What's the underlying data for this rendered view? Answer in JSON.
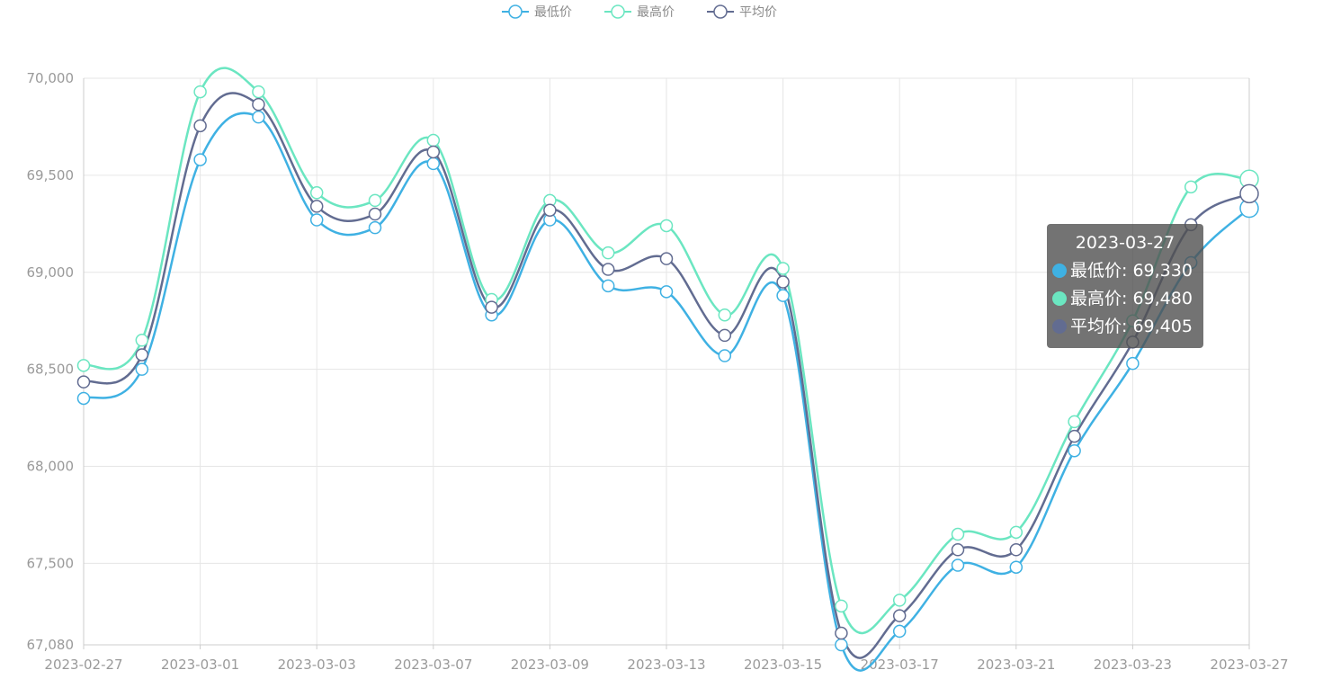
{
  "chart_data": {
    "type": "line",
    "smooth": true,
    "x": [
      "2023-02-27",
      "2023-02-28",
      "2023-03-01",
      "2023-03-02",
      "2023-03-03",
      "2023-03-06",
      "2023-03-07",
      "2023-03-08",
      "2023-03-09",
      "2023-03-10",
      "2023-03-13",
      "2023-03-14",
      "2023-03-15",
      "2023-03-16",
      "2023-03-17",
      "2023-03-20",
      "2023-03-21",
      "2023-03-22",
      "2023-03-23",
      "2023-03-24",
      "2023-03-27"
    ],
    "x_tick_labels": [
      "2023-02-27",
      "2023-03-01",
      "2023-03-03",
      "2023-03-07",
      "2023-03-09",
      "2023-03-13",
      "2023-03-15",
      "2023-03-17",
      "2023-03-21",
      "2023-03-23",
      "2023-03-27"
    ],
    "ylim": [
      67080,
      70000
    ],
    "y_ticks": [
      67080,
      67500,
      68000,
      68500,
      69000,
      69500,
      70000
    ],
    "y_tick_labels": [
      "67,080",
      "67,500",
      "68,000",
      "68,500",
      "69,000",
      "69,500",
      "70,000"
    ],
    "grid": true,
    "legend_position": "top-center",
    "series": [
      {
        "name": "最低价",
        "color": "#3fb1e3",
        "values": [
          68350,
          68500,
          69580,
          69800,
          69270,
          69230,
          69560,
          68780,
          69270,
          68930,
          68900,
          68570,
          68880,
          67080,
          67150,
          67490,
          67480,
          68080,
          68530,
          69050,
          69330
        ]
      },
      {
        "name": "最高价",
        "color": "#6be6c1",
        "values": [
          68520,
          68650,
          69930,
          69930,
          69410,
          69370,
          69680,
          68860,
          69370,
          69100,
          69240,
          68780,
          69020,
          67280,
          67310,
          67650,
          67660,
          68230,
          68750,
          69440,
          69480
        ]
      },
      {
        "name": "平均价",
        "color": "#626c91",
        "values": [
          68435,
          68575,
          69755,
          69865,
          69340,
          69300,
          69620,
          68820,
          69320,
          69015,
          69070,
          68675,
          68950,
          67140,
          67230,
          67570,
          67570,
          68155,
          68640,
          69245,
          69405
        ]
      }
    ],
    "tooltip": {
      "title": "2023-03-27",
      "rows": [
        {
          "label": "最低价: 69,330",
          "color": "#3fb1e3"
        },
        {
          "label": "最高价: 69,480",
          "color": "#6be6c1"
        },
        {
          "label": "平均价: 69,405",
          "color": "#626c91"
        }
      ]
    }
  }
}
